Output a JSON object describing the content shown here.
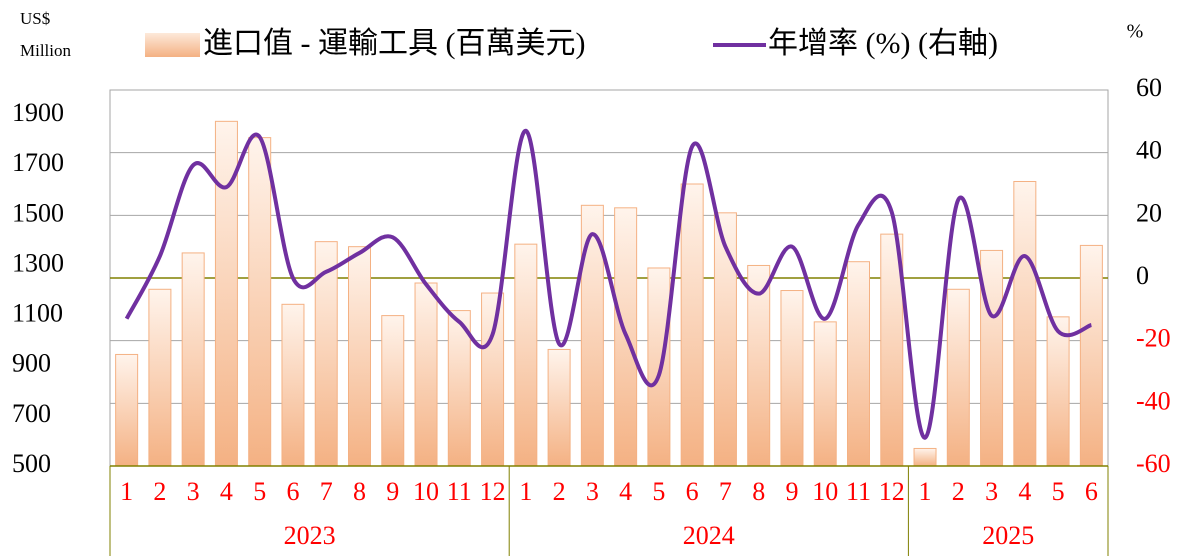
{
  "chart_data": {
    "type": "bar_line",
    "ylabel_lines": [
      "US$",
      "Million"
    ],
    "y2label": "%",
    "categories": [
      "1",
      "2",
      "3",
      "4",
      "5",
      "6",
      "7",
      "8",
      "9",
      "10",
      "11",
      "12",
      "1",
      "2",
      "3",
      "4",
      "5",
      "6",
      "7",
      "8",
      "9",
      "10",
      "11",
      "12",
      "1",
      "2",
      "3",
      "4",
      "5",
      "6"
    ],
    "groups": [
      {
        "label": "2023",
        "span": 12
      },
      {
        "label": "2024",
        "span": 12
      },
      {
        "label": "2025",
        "span": 6
      }
    ],
    "series": [
      {
        "name": "進口值 - 運輸工具 (百萬美元)",
        "type": "bar",
        "color": "#f4b183",
        "values": [
          945,
          1205,
          1350,
          1875,
          1810,
          1145,
          1395,
          1375,
          1100,
          1230,
          1120,
          1190,
          1385,
          965,
          1540,
          1530,
          1290,
          1625,
          1510,
          1300,
          1200,
          1075,
          1315,
          1425,
          570,
          1205,
          1360,
          1635,
          1095,
          1380
        ]
      },
      {
        "name": "年增率 (%) (右軸)",
        "type": "line",
        "axis": "y2",
        "color": "#7030a0",
        "values": [
          -13,
          7,
          36,
          29,
          45,
          0,
          2,
          8,
          13,
          -2,
          -14,
          -18,
          47,
          -21,
          14,
          -18,
          -31,
          42,
          10,
          -5,
          10,
          -13,
          17,
          21,
          -51,
          25,
          -12,
          7,
          -17,
          -15
        ]
      }
    ],
    "ylim": [
      500,
      2000
    ],
    "yticks": [
      500,
      700,
      900,
      1100,
      1300,
      1500,
      1700,
      1900
    ],
    "y2lim": [
      -60,
      60
    ],
    "y2ticks": [
      -60,
      -40,
      -20,
      0,
      20,
      40,
      60
    ],
    "grid": true,
    "zero_line_color": "#808000",
    "negative_tick_color": "#ff0000",
    "category_label_color": "#ff0000"
  }
}
